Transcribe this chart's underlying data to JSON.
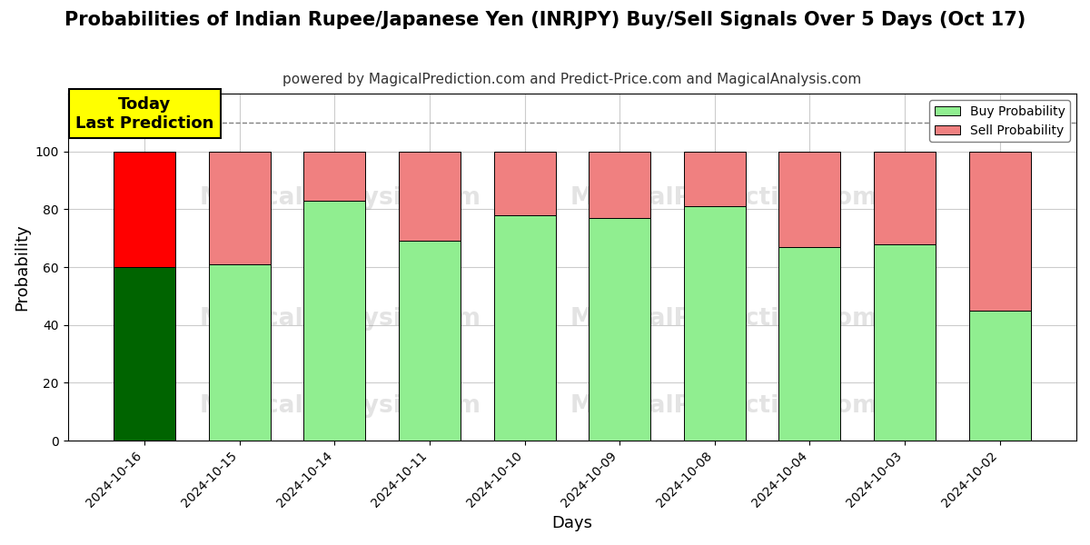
{
  "title": "Probabilities of Indian Rupee/Japanese Yen (INRJPY) Buy/Sell Signals Over 5 Days (Oct 17)",
  "subtitle": "powered by MagicalPrediction.com and Predict-Price.com and MagicalAnalysis.com",
  "xlabel": "Days",
  "ylabel": "Probability",
  "dates": [
    "2024-10-16",
    "2024-10-15",
    "2024-10-14",
    "2024-10-11",
    "2024-10-10",
    "2024-10-09",
    "2024-10-08",
    "2024-10-04",
    "2024-10-03",
    "2024-10-02"
  ],
  "buy_values": [
    60,
    61,
    83,
    69,
    78,
    77,
    81,
    67,
    68,
    45
  ],
  "sell_values": [
    40,
    39,
    17,
    31,
    22,
    23,
    19,
    33,
    32,
    55
  ],
  "today_bar_buy_color": "#006400",
  "today_bar_sell_color": "#FF0000",
  "regular_bar_buy_color": "#90EE90",
  "regular_bar_sell_color": "#F08080",
  "bar_edge_color": "#000000",
  "annotation_bg_color": "#FFFF00",
  "annotation_text": "Today\nLast Prediction",
  "ylim": [
    0,
    120
  ],
  "yticks": [
    0,
    20,
    40,
    60,
    80,
    100
  ],
  "dashed_line_y": 110,
  "legend_buy_color": "#90EE90",
  "legend_sell_color": "#F08080",
  "background_color": "#ffffff",
  "grid_color": "#cccccc",
  "title_fontsize": 15,
  "subtitle_fontsize": 11,
  "axis_label_fontsize": 13,
  "bar_width": 0.65
}
